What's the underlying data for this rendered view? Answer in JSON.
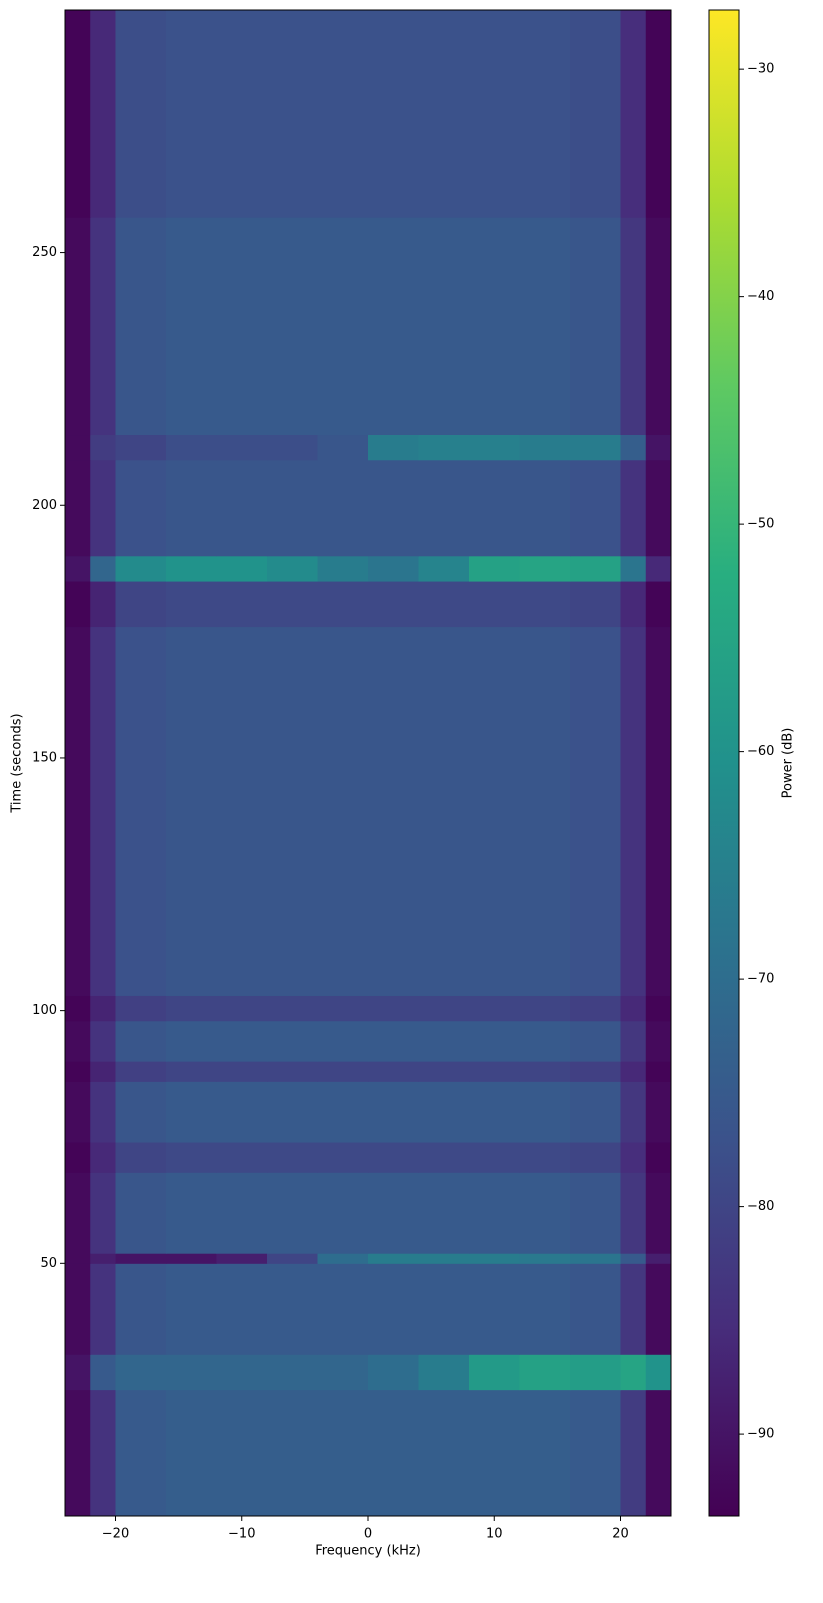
{
  "chart_data": {
    "type": "heatmap",
    "xlabel": "Frequency (kHz)",
    "ylabel": "Time (seconds)",
    "xlim": [
      -24,
      24
    ],
    "ylim": [
      0,
      298
    ],
    "xticks": [
      {
        "value": -20,
        "label": "−20"
      },
      {
        "value": -10,
        "label": "−10"
      },
      0,
      10,
      20
    ],
    "yticks": [
      50,
      100,
      150,
      200,
      250
    ],
    "x_edges": [
      -24,
      -22,
      -20,
      -16,
      -12,
      -8,
      -4,
      0,
      4,
      8,
      12,
      16,
      20,
      22,
      24
    ],
    "y_edges": [
      0,
      25,
      32,
      50,
      52,
      68,
      74,
      86,
      90,
      98,
      103,
      176,
      185,
      190,
      209,
      214,
      257,
      298
    ],
    "values": [
      [
        -92,
        -84,
        -75,
        -74,
        -74,
        -74,
        -74,
        -74,
        -74,
        -74,
        -74,
        -75,
        -82,
        -92
      ],
      [
        -90,
        -75,
        -72,
        -72,
        -72,
        -72,
        -72,
        -70,
        -66,
        -58,
        -56,
        -57,
        -55,
        -60
      ],
      [
        -92,
        -84,
        -76,
        -75,
        -75,
        -75,
        -75,
        -75,
        -75,
        -75,
        -75,
        -76,
        -83,
        -92
      ],
      [
        -92,
        -88,
        -90,
        -90,
        -88,
        -80,
        -70,
        -66,
        -66,
        -66,
        -67,
        -68,
        -75,
        -88
      ],
      [
        -92,
        -84,
        -76,
        -75,
        -75,
        -75,
        -75,
        -75,
        -75,
        -75,
        -75,
        -76,
        -83,
        -92
      ],
      [
        -93,
        -86,
        -80,
        -79,
        -79,
        -79,
        -79,
        -79,
        -79,
        -79,
        -79,
        -80,
        -85,
        -93
      ],
      [
        -92,
        -84,
        -76,
        -75,
        -75,
        -75,
        -75,
        -75,
        -75,
        -75,
        -75,
        -76,
        -83,
        -92
      ],
      [
        -93,
        -87,
        -81,
        -80,
        -80,
        -80,
        -80,
        -80,
        -80,
        -80,
        -80,
        -81,
        -86,
        -93
      ],
      [
        -92,
        -84,
        -76,
        -75,
        -75,
        -75,
        -75,
        -75,
        -75,
        -75,
        -75,
        -76,
        -83,
        -92
      ],
      [
        -93,
        -87,
        -81,
        -80,
        -80,
        -80,
        -80,
        -80,
        -80,
        -80,
        -80,
        -81,
        -86,
        -93
      ],
      [
        -92,
        -84,
        -77,
        -76,
        -76,
        -76,
        -76,
        -76,
        -76,
        -76,
        -76,
        -77,
        -84,
        -92
      ],
      [
        -93,
        -87,
        -80,
        -79,
        -79,
        -79,
        -79,
        -79,
        -79,
        -79,
        -79,
        -80,
        -86,
        -93
      ],
      [
        -90,
        -72,
        -62,
        -60,
        -60,
        -62,
        -66,
        -68,
        -64,
        -56,
        -55,
        -56,
        -68,
        -86
      ],
      [
        -92,
        -84,
        -77,
        -76,
        -76,
        -76,
        -76,
        -76,
        -76,
        -76,
        -76,
        -77,
        -84,
        -92
      ],
      [
        -92,
        -82,
        -80,
        -78,
        -78,
        -78,
        -76,
        -66,
        -65,
        -65,
        -66,
        -66,
        -74,
        -90
      ],
      [
        -92,
        -84,
        -76,
        -75,
        -75,
        -75,
        -75,
        -75,
        -75,
        -75,
        -75,
        -76,
        -83,
        -92
      ],
      [
        -93,
        -86,
        -78,
        -77,
        -77,
        -77,
        -77,
        -77,
        -77,
        -77,
        -77,
        -78,
        -85,
        -93
      ]
    ],
    "colormap": [
      "#440154",
      "#472d7b",
      "#3b528b",
      "#2c728e",
      "#21918c",
      "#28ae80",
      "#5ec962",
      "#addc30",
      "#fde725"
    ],
    "colorbar": {
      "label": "Power (dB)",
      "lim": [
        -93.6,
        -27.4
      ],
      "ticks": [
        {
          "value": -90,
          "label": "−90"
        },
        {
          "value": -80,
          "label": "−80"
        },
        {
          "value": -70,
          "label": "−70"
        },
        {
          "value": -60,
          "label": "−60"
        },
        {
          "value": -50,
          "label": "−50"
        },
        {
          "value": -40,
          "label": "−40"
        },
        {
          "value": -30,
          "label": "−30"
        }
      ]
    }
  }
}
